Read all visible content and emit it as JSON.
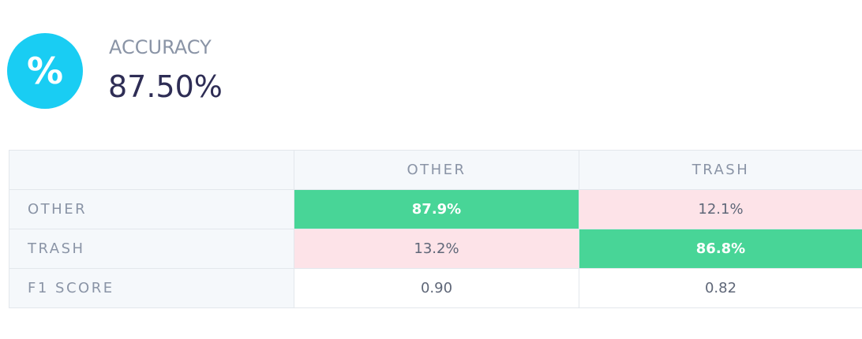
{
  "accuracy": {
    "icon": "%",
    "label": "ACCURACY",
    "value": "87.50%"
  },
  "table": {
    "columns": [
      "OTHER",
      "TRASH"
    ],
    "rows": [
      {
        "label": "OTHER",
        "cells": [
          "87.9%",
          "12.1%"
        ]
      },
      {
        "label": "TRASH",
        "cells": [
          "13.2%",
          "86.8%"
        ]
      }
    ],
    "f1": {
      "label": "F1 SCORE",
      "cells": [
        "0.90",
        "0.82"
      ]
    }
  }
}
